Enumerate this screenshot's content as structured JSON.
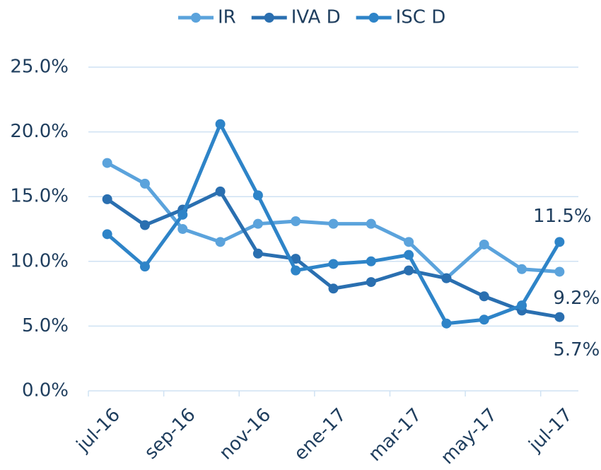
{
  "chart_data": {
    "type": "line",
    "categories": [
      "jul-16",
      null,
      "sep-16",
      null,
      "nov-16",
      null,
      "ene-17",
      null,
      "mar-17",
      null,
      "may-17",
      null,
      "jul-17"
    ],
    "series": [
      {
        "name": "IR",
        "color": "#5ba3dc",
        "values": [
          17.6,
          16.0,
          12.5,
          11.5,
          12.9,
          13.1,
          12.9,
          12.9,
          11.5,
          8.7,
          11.3,
          9.4,
          9.2
        ],
        "value_labels": [
          null,
          null,
          null,
          null,
          null,
          null,
          null,
          null,
          null,
          null,
          null,
          null,
          "9.2%"
        ]
      },
      {
        "name": "IVA D",
        "color": "#2a6fb0",
        "values": [
          14.8,
          12.8,
          14.0,
          15.4,
          10.6,
          10.2,
          7.9,
          8.4,
          9.3,
          8.7,
          7.3,
          6.2,
          5.7
        ],
        "value_labels": [
          null,
          null,
          null,
          null,
          null,
          null,
          null,
          null,
          null,
          null,
          null,
          null,
          "5.7%"
        ]
      },
      {
        "name": "ISC D",
        "color": "#2e84c8",
        "values": [
          12.1,
          9.6,
          13.6,
          20.6,
          15.1,
          9.3,
          9.8,
          10.0,
          10.5,
          5.2,
          5.5,
          6.6,
          11.5
        ],
        "value_labels": [
          null,
          null,
          null,
          null,
          null,
          null,
          null,
          null,
          null,
          null,
          null,
          null,
          "11.5%"
        ]
      }
    ],
    "ylim": [
      0,
      25
    ],
    "yticks": [
      {
        "value": 0,
        "label": "0.0%"
      },
      {
        "value": 5,
        "label": "5.0%"
      },
      {
        "value": 10,
        "label": "10.0%"
      },
      {
        "value": 15,
        "label": "15.0%"
      },
      {
        "value": 20,
        "label": "20.0%"
      },
      {
        "value": 25,
        "label": "25.0%"
      }
    ],
    "grid": true,
    "legend": "top"
  }
}
